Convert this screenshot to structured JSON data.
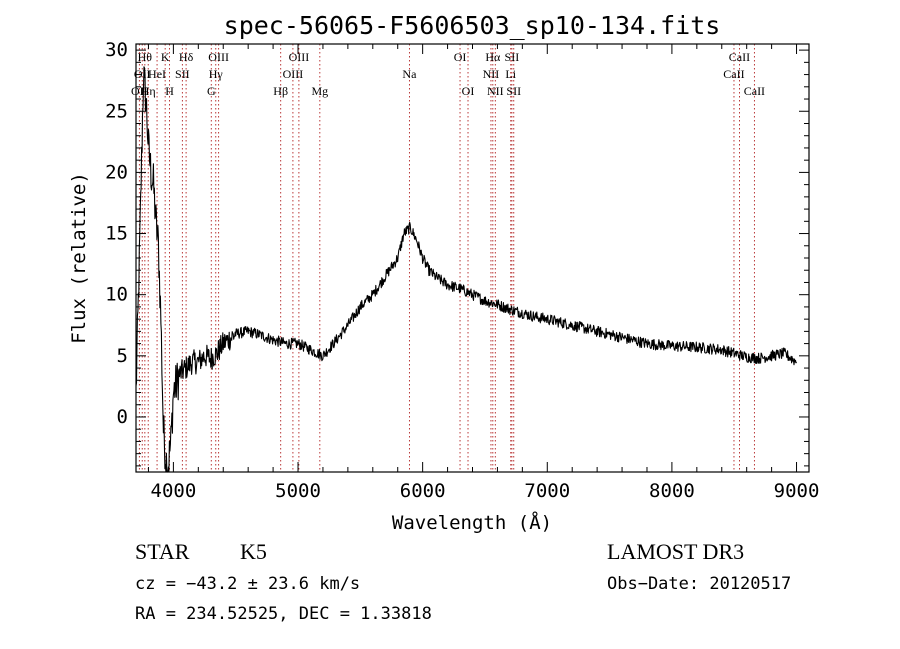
{
  "chart_data": {
    "type": "line",
    "title": "spec-56065-F5606503_sp10-134.fits",
    "xlabel": "Wavelength (Å)",
    "ylabel": "Flux (relative)",
    "xlim": [
      3700,
      9100
    ],
    "ylim": [
      -4.5,
      30.5
    ],
    "xticks": [
      4000,
      5000,
      6000,
      7000,
      8000,
      9000
    ],
    "yticks": [
      0,
      5,
      10,
      15,
      20,
      25,
      30
    ],
    "series": [
      {
        "name": "flux",
        "x": [
          3700,
          3730,
          3760,
          3780,
          3800,
          3820,
          3840,
          3860,
          3880,
          3900,
          3920,
          3940,
          3960,
          3980,
          4000,
          4050,
          4100,
          4150,
          4200,
          4250,
          4300,
          4350,
          4400,
          4500,
          4600,
          4700,
          4800,
          4900,
          5000,
          5100,
          5200,
          5300,
          5400,
          5500,
          5600,
          5700,
          5800,
          5850,
          5900,
          5950,
          6000,
          6050,
          6100,
          6200,
          6300,
          6400,
          6500,
          6600,
          6700,
          6800,
          6900,
          7000,
          7200,
          7400,
          7600,
          7800,
          8000,
          8200,
          8300,
          8400,
          8500,
          8600,
          8700,
          8800,
          8900,
          9000
        ],
        "y": [
          2.0,
          14.0,
          28.0,
          26.0,
          22.0,
          20.0,
          19.0,
          16.0,
          14.0,
          8.0,
          -1.0,
          -3.5,
          -3.8,
          -2.0,
          2.0,
          3.5,
          4.0,
          4.5,
          4.5,
          5.0,
          4.8,
          5.2,
          6.0,
          6.8,
          7.0,
          6.7,
          6.3,
          6.0,
          6.0,
          5.5,
          5.0,
          6.2,
          7.5,
          9.0,
          10.0,
          11.5,
          13.0,
          15.0,
          15.5,
          14.5,
          13.0,
          12.0,
          11.5,
          10.8,
          10.5,
          10.0,
          9.5,
          9.2,
          8.8,
          8.5,
          8.2,
          8.0,
          7.5,
          7.0,
          6.5,
          6.0,
          5.8,
          5.7,
          5.6,
          5.5,
          5.2,
          4.9,
          4.8,
          5.0,
          5.2,
          4.5
        ]
      }
    ],
    "lines": [
      {
        "wl": 3727,
        "label": "OII",
        "row": 2
      },
      {
        "wl": 3750,
        "label": "OII",
        "row": 1
      },
      {
        "wl": 3771,
        "label": "Hθ",
        "row": 0
      },
      {
        "wl": 3798,
        "label": "Hη",
        "row": 2
      },
      {
        "wl": 3869,
        "label": "HeI",
        "row": 1
      },
      {
        "wl": 3934,
        "label": "K",
        "row": 0
      },
      {
        "wl": 3969,
        "label": "H",
        "row": 2
      },
      {
        "wl": 4072,
        "label": "SII",
        "row": 1
      },
      {
        "wl": 4102,
        "label": "Hδ",
        "row": 0
      },
      {
        "wl": 4304,
        "label": "G",
        "row": 2
      },
      {
        "wl": 4340,
        "label": "Hγ",
        "row": 1
      },
      {
        "wl": 4363,
        "label": "OIII",
        "row": 0
      },
      {
        "wl": 4861,
        "label": "Hβ",
        "row": 2
      },
      {
        "wl": 4959,
        "label": "OIII",
        "row": 1
      },
      {
        "wl": 5007,
        "label": "OIII",
        "row": 0
      },
      {
        "wl": 5175,
        "label": "Mg",
        "row": 2
      },
      {
        "wl": 5894,
        "label": "Na",
        "row": 1
      },
      {
        "wl": 6300,
        "label": "OI",
        "row": 0
      },
      {
        "wl": 6364,
        "label": "OI",
        "row": 2
      },
      {
        "wl": 6548,
        "label": "NII",
        "row": 1
      },
      {
        "wl": 6563,
        "label": "Hα",
        "row": 0
      },
      {
        "wl": 6583,
        "label": "NII",
        "row": 2
      },
      {
        "wl": 6707,
        "label": "Li",
        "row": 1
      },
      {
        "wl": 6716,
        "label": "SII",
        "row": 0
      },
      {
        "wl": 6731,
        "label": "SII",
        "row": 2
      },
      {
        "wl": 8498,
        "label": "CaII",
        "row": 1
      },
      {
        "wl": 8542,
        "label": "CaII",
        "row": 0
      },
      {
        "wl": 8662,
        "label": "CaII",
        "row": 2
      }
    ]
  },
  "info": {
    "class_label": "STAR",
    "subclass": "K5",
    "cz": "cz = −43.2 ± 23.6 km/s",
    "radec": "RA = 234.52525, DEC =   1.33818",
    "survey": "LAMOST DR3",
    "obs_date": "Obs−Date: 20120517"
  },
  "colors": {
    "axis": "#000000",
    "spectrum": "#000000",
    "line_marker": "#b22222"
  }
}
